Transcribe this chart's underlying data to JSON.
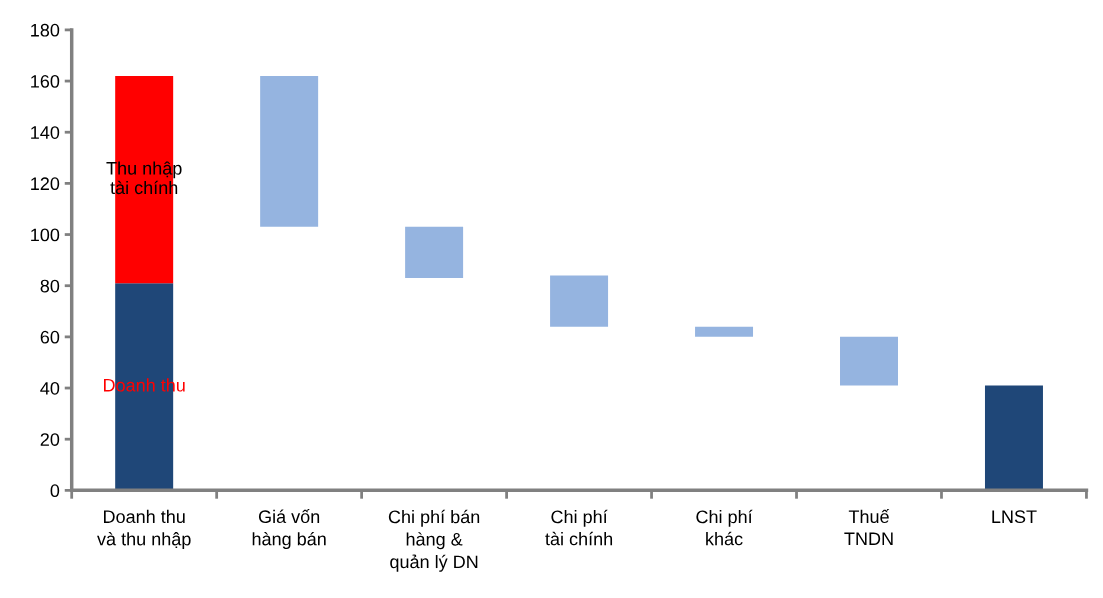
{
  "chart_data": {
    "type": "bar",
    "categories": [
      "Doanh thu\nvà thu nhập",
      "Giá vốn\nhàng bán",
      "Chi phí bán\nhàng &\nquản lý DN",
      "Chi phí\ntài chính",
      "Chi phí\nkhác",
      "Thuế\nTNDN",
      "LNST"
    ],
    "series": [
      {
        "name": "Doanh thu",
        "color": "#1f4778",
        "values": [
          81,
          null,
          null,
          null,
          null,
          null,
          41
        ]
      },
      {
        "name": "Thu nhập\ntài chính",
        "color": "#ff0000",
        "base": [
          81,
          null,
          null,
          null,
          null,
          null,
          null
        ],
        "values": [
          81,
          null,
          null,
          null,
          null,
          null,
          null
        ]
      },
      {
        "color": "#95b4e0",
        "base": [
          null,
          103,
          83,
          64,
          60,
          41,
          null
        ],
        "values": [
          null,
          59,
          20,
          20,
          4,
          19,
          null
        ]
      }
    ],
    "ylim": [
      0,
      180
    ],
    "yticks": [
      0,
      20,
      40,
      60,
      80,
      100,
      120,
      140,
      160,
      180
    ],
    "grid": false,
    "legend": false
  }
}
